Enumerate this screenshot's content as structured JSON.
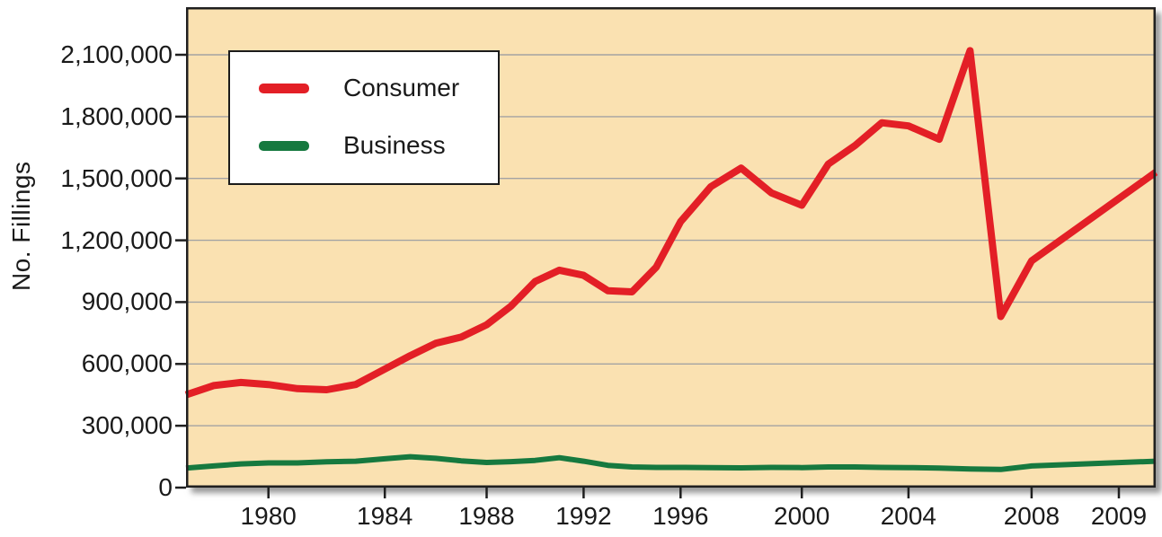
{
  "chart_data": {
    "type": "line",
    "title": "",
    "ylabel": "No. Fillings",
    "xlabel": "",
    "grid": "horizontal",
    "legend_position": "top-left",
    "plot_background": "#fae1b1",
    "gridline_color": "#a3a3a3",
    "axis_color": "#1f1f1f",
    "ylim": [
      0,
      2100000
    ],
    "x": [
      1977,
      1978,
      1979,
      1980,
      1981,
      1982,
      1983,
      1984,
      1985,
      1986,
      1987,
      1988,
      1989,
      1990,
      1991,
      1992,
      1993,
      1994,
      1995,
      1996,
      1997,
      1998,
      1999,
      2000,
      2001,
      2002,
      2003,
      2004,
      2005,
      2006,
      2007,
      2008,
      2009
    ],
    "series": [
      {
        "name": "Consumer",
        "color": "#e31f26",
        "values": [
          450000,
          495000,
          510000,
          500000,
          480000,
          475000,
          500000,
          575000,
          640000,
          700000,
          730000,
          790000,
          880000,
          1000000,
          1055000,
          1030000,
          955000,
          950000,
          1070000,
          1290000,
          1460000,
          1550000,
          1430000,
          1370000,
          1570000,
          1660000,
          1770000,
          1755000,
          1690000,
          2120000,
          830000,
          1100000,
          1530000
        ]
      },
      {
        "name": "Business",
        "color": "#16793f",
        "values": [
          95000,
          105000,
          115000,
          120000,
          120000,
          125000,
          128000,
          140000,
          150000,
          142000,
          130000,
          122000,
          126000,
          132000,
          145000,
          128000,
          108000,
          100000,
          98000,
          98000,
          97000,
          96000,
          98000,
          97000,
          100000,
          100000,
          98000,
          97000,
          95000,
          90000,
          88000,
          105000,
          128000
        ]
      }
    ],
    "y_ticks": [
      {
        "value": 0,
        "label": "0"
      },
      {
        "value": 300000,
        "label": "300,000"
      },
      {
        "value": 600000,
        "label": "600,000"
      },
      {
        "value": 900000,
        "label": "900,000"
      },
      {
        "value": 1200000,
        "label": "1,200,000"
      },
      {
        "value": 1500000,
        "label": "1,500,000"
      },
      {
        "value": 1800000,
        "label": "1,800,000"
      },
      {
        "value": 2100000,
        "label": "2,100,000"
      }
    ],
    "x_ticks": [
      {
        "year": 1980,
        "label": "1980"
      },
      {
        "year": 1984,
        "label": "1984"
      },
      {
        "year": 1988,
        "label": "1988"
      },
      {
        "year": 1992,
        "label": "1992"
      },
      {
        "year": 1996,
        "label": "1996"
      },
      {
        "year": 2000,
        "label": "2000"
      },
      {
        "year": 2004,
        "label": "2004"
      },
      {
        "year": 2008,
        "label": "2008"
      },
      {
        "year": 2009,
        "label": "2009",
        "label_fraction": 0.962
      }
    ],
    "x_anchor_fractions": [
      [
        1977,
        0.0
      ],
      [
        1980,
        0.085
      ],
      [
        1984,
        0.205
      ],
      [
        1988,
        0.31
      ],
      [
        1992,
        0.41
      ],
      [
        1996,
        0.51
      ],
      [
        2000,
        0.635
      ],
      [
        2004,
        0.745
      ],
      [
        2008,
        0.872
      ],
      [
        2009,
        1.0
      ]
    ]
  }
}
